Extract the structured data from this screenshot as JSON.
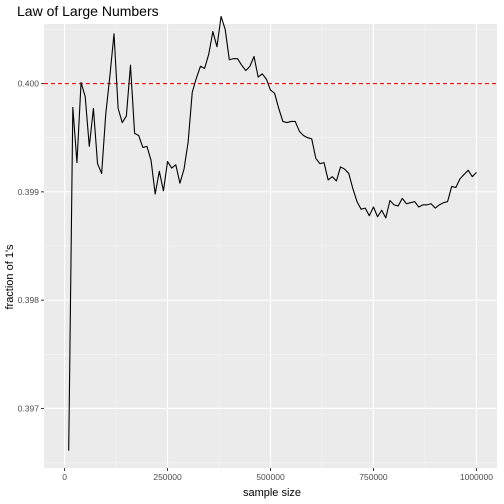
{
  "chart_data": {
    "type": "line",
    "title": "Law of Large Numbers",
    "xlabel": "sample size",
    "ylabel": "fraction of 1's",
    "xlim": [
      -50000,
      1050000
    ],
    "ylim": [
      0.39645,
      0.40055
    ],
    "x_ticks": [
      0,
      250000,
      500000,
      750000,
      1000000
    ],
    "x_tick_labels": [
      "0",
      "250000",
      "500000",
      "750000",
      "1000000"
    ],
    "y_ticks": [
      0.397,
      0.398,
      0.399,
      0.4
    ],
    "y_tick_labels": [
      "0.397",
      "0.398",
      "0.399",
      "0.400"
    ],
    "reference_line": {
      "y": 0.4,
      "style": "dashed",
      "color": "#ff0000"
    },
    "grid": true,
    "legend": "none",
    "colors": {
      "panel": "#ebebeb",
      "grid_major": "#ffffff",
      "grid_minor": "#f5f5f5",
      "line": "#000000",
      "ticks": "#333333"
    },
    "series": [
      {
        "x": [
          10000,
          20000,
          30000,
          40000,
          50000,
          60000,
          70000,
          80000,
          90000,
          100000,
          110000,
          120000,
          130000,
          140000,
          150000,
          160000,
          170000,
          180000,
          190000,
          200000,
          210000,
          220000,
          230000,
          240000,
          250000,
          260000,
          270000,
          280000,
          290000,
          300000,
          310000,
          320000,
          330000,
          340000,
          350000,
          360000,
          370000,
          380000,
          390000,
          400000,
          410000,
          420000,
          430000,
          440000,
          450000,
          460000,
          470000,
          480000,
          490000,
          500000,
          510000,
          520000,
          530000,
          540000,
          550000,
          560000,
          570000,
          580000,
          590000,
          600000,
          610000,
          620000,
          630000,
          640000,
          650000,
          660000,
          670000,
          680000,
          690000,
          700000,
          710000,
          720000,
          730000,
          740000,
          750000,
          760000,
          770000,
          780000,
          790000,
          800000,
          810000,
          820000,
          830000,
          840000,
          850000,
          860000,
          870000,
          880000,
          890000,
          900000,
          910000,
          920000,
          930000,
          940000,
          950000,
          960000,
          970000,
          980000,
          990000,
          1000000
        ],
        "values": [
          0.39661,
          0.39978,
          0.39927,
          0.40001,
          0.39988,
          0.39942,
          0.39977,
          0.39926,
          0.39917,
          0.39972,
          0.40007,
          0.40046,
          0.39977,
          0.39964,
          0.3997,
          0.40017,
          0.39954,
          0.39952,
          0.39941,
          0.39942,
          0.39929,
          0.39898,
          0.39919,
          0.39901,
          0.39928,
          0.39922,
          0.39925,
          0.39908,
          0.39921,
          0.39946,
          0.39992,
          0.40005,
          0.40016,
          0.40014,
          0.40027,
          0.40048,
          0.40034,
          0.40062,
          0.4005,
          0.40022,
          0.40023,
          0.40023,
          0.40017,
          0.40012,
          0.40016,
          0.40025,
          0.40006,
          0.40009,
          0.40004,
          0.39994,
          0.39991,
          0.39977,
          0.39965,
          0.39964,
          0.39965,
          0.39965,
          0.39956,
          0.39952,
          0.3995,
          0.39949,
          0.39931,
          0.39926,
          0.39927,
          0.39911,
          0.39914,
          0.3991,
          0.39923,
          0.39921,
          0.39917,
          0.39903,
          0.39891,
          0.39884,
          0.39885,
          0.39878,
          0.39886,
          0.39877,
          0.39883,
          0.39876,
          0.39892,
          0.39888,
          0.39887,
          0.39894,
          0.39889,
          0.3989,
          0.39891,
          0.39886,
          0.39888,
          0.39888,
          0.39889,
          0.39885,
          0.39888,
          0.3989,
          0.39891,
          0.39905,
          0.39904,
          0.39912,
          0.39916,
          0.3992,
          0.39914,
          0.39918
        ]
      }
    ]
  }
}
